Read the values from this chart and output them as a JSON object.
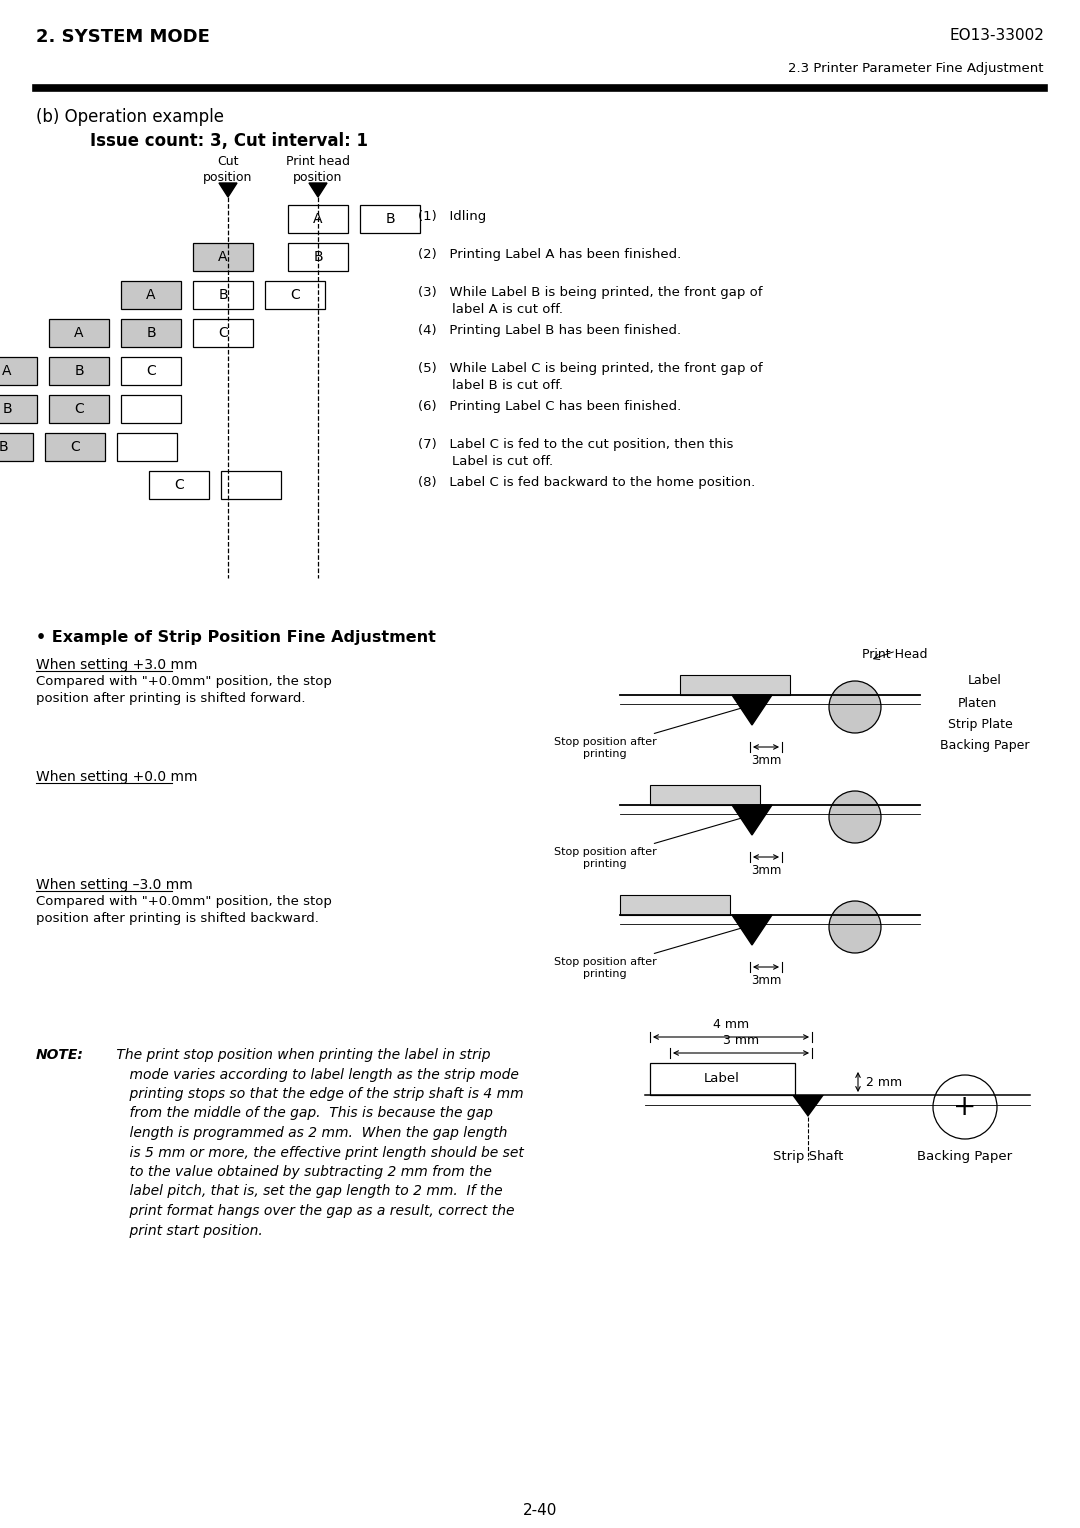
{
  "title_left": "2. SYSTEM MODE",
  "title_right": "EO13-33002",
  "subtitle_right": "2.3 Printer Parameter Fine Adjustment",
  "section_b_title": "(b) Operation example",
  "section_b_subtitle": "Issue count: 3, Cut interval: 1",
  "cut_pos_label": "Cut\nposition",
  "print_head_label": "Print head\nposition",
  "step_labels": [
    "(1)   Idling",
    "(2)   Printing Label A has been finished.",
    "(3)   While Label B is being printed, the front gap of\n        label A is cut off.",
    "(4)   Printing Label B has been finished.",
    "(5)   While Label C is being printed, the front gap of\n        label B is cut off.",
    "(6)   Printing Label C has been finished.",
    "(7)   Label C is fed to the cut position, then this\n        Label is cut off.",
    "(8)   Label C is fed backward to the home position."
  ],
  "strip_title": "• Example of Strip Position Fine Adjustment",
  "strip_settings": [
    {
      "label": "When setting +3.0 mm",
      "desc": "Compared with \"+0.0mm\" position, the stop\nposition after printing is shifted forward."
    },
    {
      "label": "When setting +0.0 mm",
      "desc": ""
    },
    {
      "label": "When setting –3.0 mm",
      "desc": "Compared with \"+0.0mm\" position, the stop\nposition after printing is shifted backward."
    }
  ],
  "note_title": "NOTE:",
  "note_text": " The print stop position when printing the label in strip\n    mode varies according to label length as the strip mode\n    printing stops so that the edge of the strip shaft is 4 mm\n    from the middle of the gap.  This is because the gap\n    length is programmed as 2 mm.  When the gap length\n    is 5 mm or more, the effective print length should be set\n    to the value obtained by subtracting 2 mm from the\n    label pitch, that is, set the gap length to 2 mm.  If the\n    print format hangs over the gap as a result, correct the\n    print start position.",
  "page_number": "2-40",
  "bg_color": "#ffffff",
  "gray_fill": "#c8c8c8"
}
